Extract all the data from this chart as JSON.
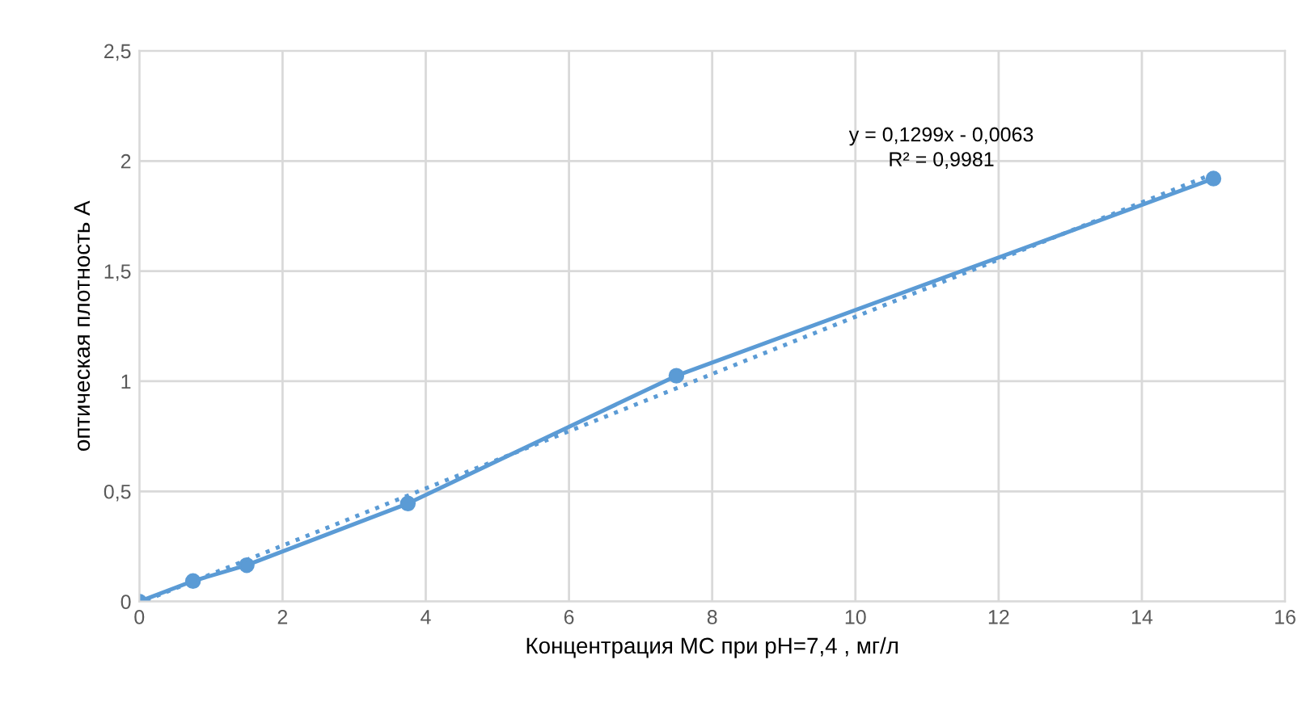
{
  "chart_data": {
    "type": "line",
    "xlabel": "Концентрация МС при pH=7,4 , мг/л",
    "ylabel": "оптическая плотность А",
    "series": [
      {
        "color": "#5b9bd5",
        "marker": "circle",
        "line_style": "solid",
        "x": [
          0,
          0.75,
          1.5,
          3.75,
          7.5,
          15
        ],
        "values": [
          0,
          0.093,
          0.165,
          0.445,
          1.025,
          1.92
        ]
      },
      {
        "color": "#5b9bd5",
        "marker": "none",
        "line_style": "dotted",
        "x": [
          0.1,
          15
        ],
        "values": [
          0.007,
          1.942
        ]
      }
    ],
    "annotations": [
      "y = 0,1299x - 0,0063",
      "R² = 0,9981"
    ],
    "xlim": [
      0,
      16
    ],
    "xticks": [
      0,
      2,
      4,
      6,
      8,
      10,
      12,
      14,
      16
    ],
    "ylim": [
      0,
      2.5
    ],
    "yticks": [
      0,
      {
        "value": 0.5,
        "label": "0,5"
      },
      1,
      {
        "value": 1.5,
        "label": "1,5"
      },
      2,
      {
        "value": 2.5,
        "label": "2,5"
      }
    ],
    "grid": true
  }
}
